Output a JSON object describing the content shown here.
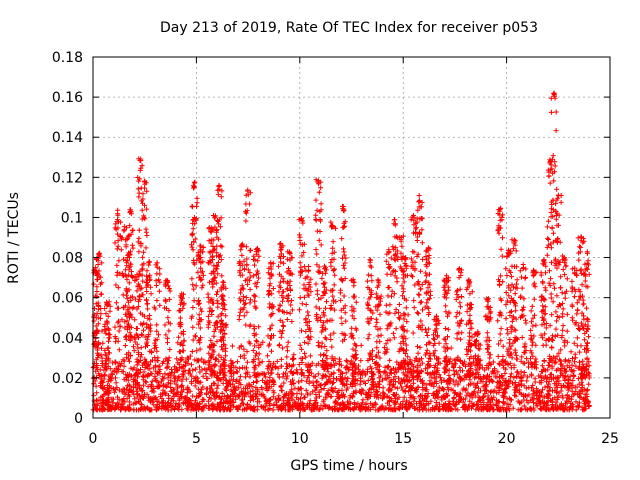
{
  "chart_data": {
    "type": "scatter",
    "title": "Day 213 of 2019, Rate Of TEC Index for receiver p053",
    "xlabel": "GPS time / hours",
    "ylabel": "ROTI / TECUs",
    "xlim": [
      0,
      25
    ],
    "ylim": [
      0,
      0.18
    ],
    "x_ticks": [
      0,
      5,
      10,
      15,
      20,
      25
    ],
    "x_tick_labels": [
      "0",
      "5",
      "10",
      "15",
      "20",
      "25"
    ],
    "y_ticks": [
      0,
      0.02,
      0.04,
      0.06,
      0.08,
      0.1,
      0.12,
      0.14,
      0.16,
      0.18
    ],
    "y_tick_labels": [
      "0",
      "0.02",
      "0.04",
      "0.06",
      "0.08",
      "0.1",
      "0.12",
      "0.14",
      "0.16",
      "0.18"
    ],
    "grid": true,
    "marker": "+",
    "color": "#ff0000",
    "x_range_data": [
      0,
      24
    ],
    "baseline_band": [
      0.004,
      0.03
    ],
    "spikes": [
      {
        "x": 0.1,
        "peak": 0.075
      },
      {
        "x": 0.3,
        "peak": 0.083
      },
      {
        "x": 0.7,
        "peak": 0.058
      },
      {
        "x": 1.2,
        "peak": 0.104
      },
      {
        "x": 1.5,
        "peak": 0.096
      },
      {
        "x": 1.7,
        "peak": 0.083
      },
      {
        "x": 1.8,
        "peak": 0.104
      },
      {
        "x": 2.1,
        "peak": 0.073
      },
      {
        "x": 2.3,
        "peak": 0.131
      },
      {
        "x": 2.5,
        "peak": 0.119
      },
      {
        "x": 2.7,
        "peak": 0.078
      },
      {
        "x": 3.1,
        "peak": 0.078
      },
      {
        "x": 3.6,
        "peak": 0.069
      },
      {
        "x": 4.3,
        "peak": 0.062
      },
      {
        "x": 4.9,
        "peak": 0.118
      },
      {
        "x": 5.2,
        "peak": 0.086
      },
      {
        "x": 5.7,
        "peak": 0.095
      },
      {
        "x": 5.9,
        "peak": 0.101
      },
      {
        "x": 6.1,
        "peak": 0.117
      },
      {
        "x": 6.3,
        "peak": 0.068
      },
      {
        "x": 7.2,
        "peak": 0.087
      },
      {
        "x": 7.5,
        "peak": 0.114
      },
      {
        "x": 7.9,
        "peak": 0.085
      },
      {
        "x": 8.6,
        "peak": 0.078
      },
      {
        "x": 9.1,
        "peak": 0.087
      },
      {
        "x": 9.5,
        "peak": 0.083
      },
      {
        "x": 10.1,
        "peak": 0.1
      },
      {
        "x": 10.4,
        "peak": 0.076
      },
      {
        "x": 10.9,
        "peak": 0.119
      },
      {
        "x": 11.2,
        "peak": 0.076
      },
      {
        "x": 11.6,
        "peak": 0.098
      },
      {
        "x": 12.1,
        "peak": 0.106
      },
      {
        "x": 12.6,
        "peak": 0.07
      },
      {
        "x": 13.4,
        "peak": 0.079
      },
      {
        "x": 13.8,
        "peak": 0.069
      },
      {
        "x": 14.3,
        "peak": 0.085
      },
      {
        "x": 14.6,
        "peak": 0.099
      },
      {
        "x": 14.9,
        "peak": 0.091
      },
      {
        "x": 15.1,
        "peak": 0.08
      },
      {
        "x": 15.5,
        "peak": 0.101
      },
      {
        "x": 15.8,
        "peak": 0.111
      },
      {
        "x": 16.2,
        "peak": 0.085
      },
      {
        "x": 16.6,
        "peak": 0.051
      },
      {
        "x": 17.1,
        "peak": 0.071
      },
      {
        "x": 17.7,
        "peak": 0.075
      },
      {
        "x": 18.2,
        "peak": 0.069
      },
      {
        "x": 18.6,
        "peak": 0.043
      },
      {
        "x": 19.1,
        "peak": 0.061
      },
      {
        "x": 19.7,
        "peak": 0.105
      },
      {
        "x": 20.1,
        "peak": 0.084
      },
      {
        "x": 20.4,
        "peak": 0.089
      },
      {
        "x": 20.8,
        "peak": 0.077
      },
      {
        "x": 21.3,
        "peak": 0.075
      },
      {
        "x": 21.8,
        "peak": 0.079
      },
      {
        "x": 22.1,
        "peak": 0.129
      },
      {
        "x": 22.3,
        "peak": 0.163
      },
      {
        "x": 22.5,
        "peak": 0.112
      },
      {
        "x": 22.8,
        "peak": 0.081
      },
      {
        "x": 23.3,
        "peak": 0.075
      },
      {
        "x": 23.6,
        "peak": 0.091
      },
      {
        "x": 23.9,
        "peak": 0.083
      }
    ]
  }
}
